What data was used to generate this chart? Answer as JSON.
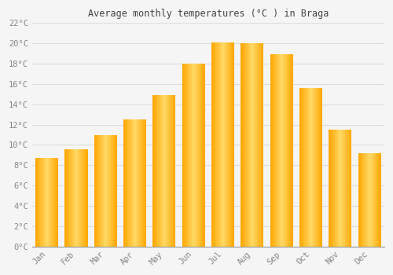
{
  "months": [
    "Jan",
    "Feb",
    "Mar",
    "Apr",
    "May",
    "Jun",
    "Jul",
    "Aug",
    "Sep",
    "Oct",
    "Nov",
    "Dec"
  ],
  "temperatures": [
    8.7,
    9.6,
    11.0,
    12.5,
    14.9,
    18.0,
    20.1,
    20.0,
    18.9,
    15.6,
    11.5,
    9.2
  ],
  "title": "Average monthly temperatures (°C ) in Braga",
  "ylim": [
    0,
    22
  ],
  "ytick_step": 2,
  "bar_color_center": "#FFD966",
  "bar_color_edge": "#FFA500",
  "background_color": "#f5f5f5",
  "grid_color": "#dddddd",
  "text_color": "#888888",
  "title_color": "#444444",
  "font_family": "monospace"
}
